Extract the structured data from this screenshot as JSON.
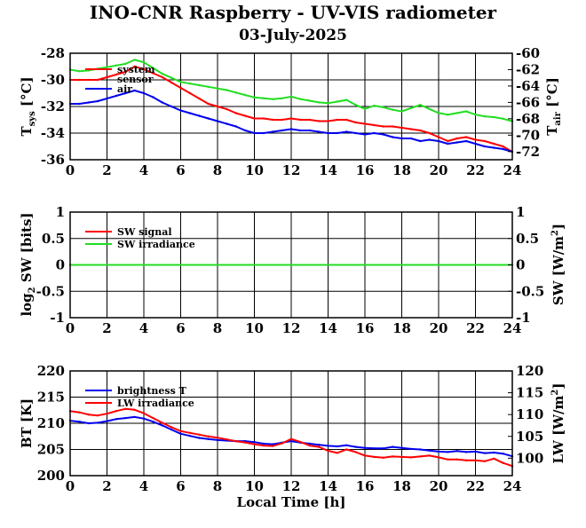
{
  "title": "INO-CNR Raspberry - UV-VIS radiometer",
  "subtitle": "03-July-2025",
  "colors": {
    "red": "#ff0000",
    "green": "#22dd22",
    "blue": "#0000ee"
  },
  "chart_data": [
    {
      "type": "line",
      "ylabel_left": "T_sys [°C]",
      "ylabel_right": "T_air [°C]",
      "xlim": [
        0,
        24
      ],
      "x_ticks": [
        "0",
        "2",
        "4",
        "6",
        "8",
        "10",
        "12",
        "14",
        "16",
        "18",
        "20",
        "22",
        "24"
      ],
      "ylim_left": [
        -36,
        -28
      ],
      "y_ticks_left": [
        "-28",
        "-30",
        "-32",
        "-34",
        "-36"
      ],
      "ylim_right": [
        -73,
        -60
      ],
      "y_ticks_right": [
        "-60",
        "-62",
        "-64",
        "-66",
        "-68",
        "-70",
        "-72"
      ],
      "legend": [
        "system",
        "sensor",
        "air"
      ],
      "series": [
        {
          "name": "system",
          "color": "red",
          "axis": "left",
          "x": [
            0,
            0.5,
            1,
            1.5,
            2,
            2.5,
            3,
            3.5,
            4,
            4.5,
            5,
            5.5,
            6,
            6.5,
            7,
            7.5,
            8,
            8.5,
            9,
            9.5,
            10,
            10.5,
            11,
            11.5,
            12,
            12.5,
            13,
            13.5,
            14,
            14.5,
            15,
            15.5,
            16,
            16.5,
            17,
            17.5,
            18,
            18.5,
            19,
            19.5,
            20,
            20.5,
            21,
            21.5,
            22,
            22.5,
            23,
            23.5,
            24
          ],
          "y": [
            -30,
            -30,
            -30,
            -30,
            -29.8,
            -29.6,
            -29.4,
            -29,
            -29.2,
            -29.5,
            -29.8,
            -30.2,
            -30.6,
            -31,
            -31.4,
            -31.8,
            -32,
            -32.2,
            -32.5,
            -32.7,
            -32.9,
            -32.9,
            -33,
            -33,
            -32.9,
            -33,
            -33,
            -33.1,
            -33.1,
            -33,
            -33,
            -33.2,
            -33.3,
            -33.4,
            -33.5,
            -33.5,
            -33.6,
            -33.7,
            -33.8,
            -34,
            -34.3,
            -34.6,
            -34.4,
            -34.3,
            -34.5,
            -34.6,
            -34.8,
            -35,
            -35.4
          ]
        },
        {
          "name": "sensor",
          "color": "green",
          "axis": "right",
          "x": [
            0,
            0.5,
            1,
            1.5,
            2,
            2.5,
            3,
            3.5,
            4,
            4.5,
            5,
            5.5,
            6,
            6.5,
            7,
            7.5,
            8,
            8.5,
            9,
            9.5,
            10,
            10.5,
            11,
            11.5,
            12,
            12.5,
            13,
            13.5,
            14,
            14.5,
            15,
            15.5,
            16,
            16.5,
            17,
            17.5,
            18,
            18.5,
            19,
            19.5,
            20,
            20.5,
            21,
            21.5,
            22,
            22.5,
            23,
            23.5,
            24
          ],
          "y": [
            -62,
            -62.2,
            -62.1,
            -61.9,
            -61.7,
            -61.5,
            -61.3,
            -60.8,
            -61.1,
            -61.8,
            -62.5,
            -63,
            -63.5,
            -63.7,
            -63.9,
            -64.1,
            -64.3,
            -64.5,
            -64.8,
            -65.1,
            -65.4,
            -65.5,
            -65.6,
            -65.5,
            -65.3,
            -65.6,
            -65.8,
            -66,
            -66.1,
            -65.9,
            -65.7,
            -66.3,
            -66.8,
            -66.4,
            -66.6,
            -66.9,
            -67.1,
            -66.7,
            -66.3,
            -66.8,
            -67.3,
            -67.5,
            -67.3,
            -67.1,
            -67.5,
            -67.7,
            -67.8,
            -68,
            -68.3
          ]
        },
        {
          "name": "air",
          "color": "blue",
          "axis": "left",
          "x": [
            0,
            0.5,
            1,
            1.5,
            2,
            2.5,
            3,
            3.5,
            4,
            4.5,
            5,
            5.5,
            6,
            6.5,
            7,
            7.5,
            8,
            8.5,
            9,
            9.5,
            10,
            10.5,
            11,
            11.5,
            12,
            12.5,
            13,
            13.5,
            14,
            14.5,
            15,
            15.5,
            16,
            16.5,
            17,
            17.5,
            18,
            18.5,
            19,
            19.5,
            20,
            20.5,
            21,
            21.5,
            22,
            22.5,
            23,
            23.5,
            24
          ],
          "y": [
            -31.8,
            -31.8,
            -31.7,
            -31.6,
            -31.4,
            -31.2,
            -31,
            -30.8,
            -31,
            -31.3,
            -31.7,
            -32,
            -32.3,
            -32.5,
            -32.7,
            -32.9,
            -33.1,
            -33.3,
            -33.5,
            -33.8,
            -34,
            -34,
            -33.9,
            -33.8,
            -33.7,
            -33.8,
            -33.8,
            -33.9,
            -34,
            -34,
            -33.9,
            -34,
            -34.1,
            -34,
            -34.1,
            -34.3,
            -34.4,
            -34.4,
            -34.6,
            -34.5,
            -34.6,
            -34.8,
            -34.7,
            -34.6,
            -34.8,
            -35,
            -35.1,
            -35.2,
            -35.4
          ]
        }
      ]
    },
    {
      "type": "line",
      "ylabel_left": "log2 SW [bits]",
      "ylabel_right": "SW [W/m2]",
      "xlim": [
        0,
        24
      ],
      "x_ticks": [
        "0",
        "2",
        "4",
        "6",
        "8",
        "10",
        "12",
        "14",
        "16",
        "18",
        "20",
        "22",
        "24"
      ],
      "ylim_left": [
        -1,
        1
      ],
      "y_ticks_left": [
        "1",
        "0.5",
        "0",
        "-0.5",
        "-1"
      ],
      "y_ticks_right": [
        "1",
        "0.5",
        "0",
        "-0.5",
        "-1"
      ],
      "legend": [
        "SW signal",
        "SW irradiance"
      ],
      "series": [
        {
          "name": "SW signal",
          "color": "red",
          "x": [
            0,
            24
          ],
          "y": [
            0,
            0
          ]
        },
        {
          "name": "SW irradiance",
          "color": "green",
          "x": [
            0,
            24
          ],
          "y": [
            0,
            0
          ]
        }
      ]
    },
    {
      "type": "line",
      "ylabel_left": "BT [K]",
      "ylabel_right": "LW [W/m2]",
      "xlabel": "Local Time [h]",
      "xlim": [
        0,
        24
      ],
      "x_ticks": [
        "0",
        "2",
        "4",
        "6",
        "8",
        "10",
        "12",
        "14",
        "16",
        "18",
        "20",
        "22",
        "24"
      ],
      "ylim_left": [
        200,
        220
      ],
      "y_ticks_left": [
        "220",
        "215",
        "210",
        "205",
        "200"
      ],
      "ylim_right": [
        96,
        120
      ],
      "y_ticks_right": [
        "120",
        "115",
        "110",
        "105",
        "100"
      ],
      "legend": [
        "brightness T",
        "LW irradiance"
      ],
      "series": [
        {
          "name": "brightness T",
          "color": "blue",
          "axis": "left",
          "x": [
            0,
            0.5,
            1,
            1.5,
            2,
            2.5,
            3,
            3.5,
            4,
            4.5,
            5,
            5.5,
            6,
            6.5,
            7,
            7.5,
            8,
            8.5,
            9,
            9.5,
            10,
            10.5,
            11,
            11.5,
            12,
            12.5,
            13,
            13.5,
            14,
            14.5,
            15,
            15.5,
            16,
            16.5,
            17,
            17.5,
            18,
            18.5,
            19,
            19.5,
            20,
            20.5,
            21,
            21.5,
            22,
            22.5,
            23,
            23.5,
            24
          ],
          "y": [
            210.5,
            210.3,
            210,
            210.1,
            210.4,
            210.8,
            211,
            211.2,
            210.9,
            210.3,
            209.6,
            208.8,
            208,
            207.6,
            207.2,
            207,
            206.8,
            206.7,
            206.6,
            206.6,
            206.4,
            206.1,
            206,
            206.3,
            206.6,
            206.3,
            206.1,
            205.9,
            205.7,
            205.6,
            205.8,
            205.5,
            205.3,
            205.2,
            205.2,
            205.5,
            205.3,
            205.1,
            205,
            204.8,
            204.6,
            204.5,
            204.7,
            204.5,
            204.6,
            204.3,
            204.4,
            204.2,
            203.7
          ]
        },
        {
          "name": "LW irradiance",
          "color": "red",
          "axis": "right",
          "x": [
            0,
            0.5,
            1,
            1.5,
            2,
            2.5,
            3,
            3.5,
            4,
            4.5,
            5,
            5.5,
            6,
            6.5,
            7,
            7.5,
            8,
            8.5,
            9,
            9.5,
            10,
            10.5,
            11,
            11.5,
            12,
            12.5,
            13,
            13.5,
            14,
            14.5,
            15,
            15.5,
            16,
            16.5,
            17,
            17.5,
            18,
            18.5,
            19,
            19.5,
            20,
            20.5,
            21,
            21.5,
            22,
            22.5,
            23,
            23.5,
            24
          ],
          "y": [
            110.8,
            110.5,
            110,
            109.8,
            110.2,
            110.8,
            111.3,
            111.1,
            110.3,
            109.2,
            108.1,
            107.1,
            106.2,
            105.8,
            105.4,
            105,
            104.7,
            104.3,
            103.9,
            103.6,
            103.2,
            102.9,
            102.8,
            103.4,
            104.4,
            103.7,
            102.9,
            102.6,
            101.7,
            101.2,
            102,
            101.4,
            100.6,
            100.3,
            100.1,
            100.4,
            100.3,
            100.2,
            100.4,
            100.6,
            100.2,
            99.7,
            99.7,
            99.5,
            99.5,
            99.3,
            99.9,
            98.9,
            98.2
          ]
        }
      ]
    }
  ]
}
